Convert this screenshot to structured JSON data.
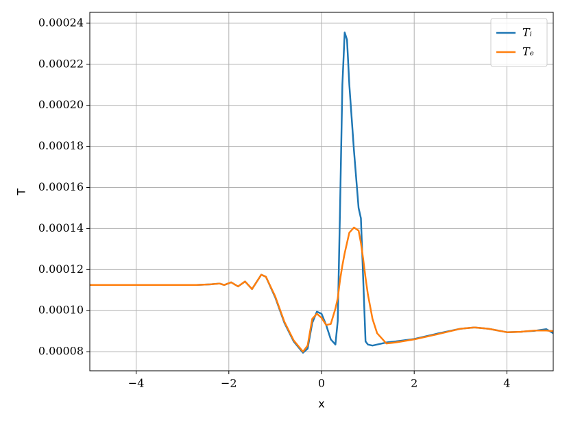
{
  "chart_data": {
    "type": "line",
    "xlabel": "x",
    "ylabel": "T",
    "grid": true,
    "legend": "upper right",
    "x": [
      -5,
      -2.7,
      -2.4,
      -2.2,
      -2.1,
      -1.95,
      -1.8,
      -1.65,
      -1.5,
      -1.3,
      -1.2,
      -1.0,
      -0.8,
      -0.6,
      -0.4,
      -0.3,
      -0.2,
      -0.1,
      0,
      0.1,
      0.2,
      0.3,
      0.35,
      0.4,
      0.45,
      0.5,
      0.55,
      0.6,
      0.7,
      0.8,
      0.85,
      0.9,
      0.95,
      1.0,
      1.1,
      1.2,
      1.4,
      1.6,
      2.0,
      2.5,
      3.0,
      3.3,
      3.6,
      4.0,
      4.3,
      4.6,
      4.85,
      5.0
    ],
    "series": [
      {
        "name": "Tᵢ",
        "color": "#1f77b4",
        "values": [
          0.0001125,
          0.0001125,
          0.0001128,
          0.0001132,
          0.0001125,
          0.0001138,
          0.0001118,
          0.0001142,
          0.0001105,
          0.0001175,
          0.0001165,
          0.0001065,
          9.4e-05,
          8.5e-05,
          7.95e-05,
          8.15e-05,
          9.4e-05,
          9.95e-05,
          9.85e-05,
          9.3e-05,
          8.6e-05,
          8.35e-05,
          9.5e-05,
          0.00015,
          0.00021,
          0.0002355,
          0.000232,
          0.00021,
          0.000178,
          0.00015,
          0.000145,
          0.000115,
          8.5e-05,
          8.35e-05,
          8.3e-05,
          8.35e-05,
          8.45e-05,
          8.5e-05,
          8.62e-05,
          8.88e-05,
          9.12e-05,
          9.18e-05,
          9.12e-05,
          8.95e-05,
          8.97e-05,
          9.02e-05,
          9.1e-05,
          8.9e-05
        ]
      },
      {
        "name": "Tₑ",
        "color": "#ff7f0e",
        "values": [
          0.0001125,
          0.0001125,
          0.0001128,
          0.0001132,
          0.0001125,
          0.0001138,
          0.0001118,
          0.0001142,
          0.0001105,
          0.0001175,
          0.0001165,
          0.000107,
          9.45e-05,
          8.55e-05,
          8e-05,
          8.3e-05,
          9.6e-05,
          9.85e-05,
          9.65e-05,
          9.3e-05,
          9.35e-05,
          0.000101,
          0.000106,
          0.000115,
          0.000122,
          0.000128,
          0.000133,
          0.000138,
          0.0001405,
          0.000139,
          0.000133,
          0.000125,
          0.000116,
          0.000108,
          9.6e-05,
          8.9e-05,
          8.4e-05,
          8.45e-05,
          8.6e-05,
          8.85e-05,
          9.12e-05,
          9.18e-05,
          9.12e-05,
          8.95e-05,
          8.97e-05,
          9.03e-05,
          9.03e-05,
          9e-05
        ]
      }
    ],
    "xlim": [
      -5,
      5
    ],
    "xticks": [
      {
        "value": -4,
        "label": "−4"
      },
      {
        "value": -2,
        "label": "−2"
      },
      0,
      2,
      4
    ],
    "ylim": [
      7.07e-05,
      0.0002453
    ],
    "yticks": [
      8e-05,
      {
        "value": 0.0001,
        "label": "0.00010"
      },
      0.00012,
      0.00014,
      0.00016,
      0.00018,
      {
        "value": 0.0002,
        "label": "0.00020"
      },
      0.00022,
      0.00024
    ]
  }
}
